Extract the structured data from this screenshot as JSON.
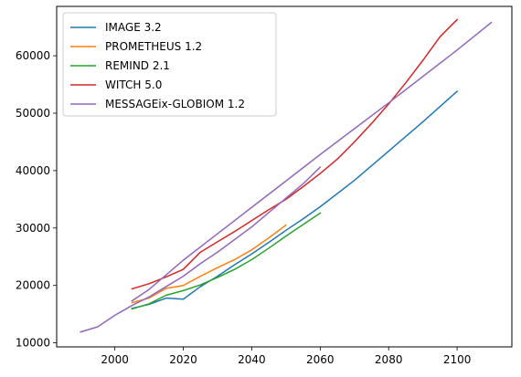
{
  "chart_data": {
    "type": "line",
    "title": "",
    "xlabel": "",
    "ylabel": "",
    "xlim": [
      1983,
      2116
    ],
    "ylim": [
      9300,
      68600
    ],
    "xticks": [
      2000,
      2020,
      2040,
      2060,
      2080,
      2100
    ],
    "yticks": [
      10000,
      20000,
      30000,
      40000,
      50000,
      60000
    ],
    "grid": false,
    "legend": "top-left",
    "series": [
      {
        "name": "IMAGE 3.2",
        "color": "#1f77b4",
        "x": [
          2005,
          2010,
          2015,
          2020,
          2025,
          2030,
          2035,
          2040,
          2045,
          2050,
          2055,
          2060,
          2070,
          2080,
          2090,
          2100
        ],
        "y": [
          16000,
          16700,
          17800,
          17600,
          19800,
          21600,
          23600,
          25500,
          27500,
          29600,
          31600,
          33700,
          38300,
          43400,
          48500,
          53800
        ]
      },
      {
        "name": "PROMETHEUS 1.2",
        "color": "#ff7f0e",
        "x": [
          2005,
          2010,
          2015,
          2020,
          2025,
          2030,
          2035,
          2040,
          2045,
          2050
        ],
        "y": [
          17000,
          17800,
          19500,
          20000,
          21600,
          23100,
          24500,
          26200,
          28300,
          30500
        ]
      },
      {
        "name": "REMIND 2.1",
        "color": "#2ca02c",
        "x": [
          2005,
          2010,
          2015,
          2020,
          2025,
          2030,
          2035,
          2040,
          2045,
          2050,
          2055,
          2060
        ],
        "y": [
          15900,
          16800,
          18300,
          19100,
          20100,
          21400,
          22800,
          24500,
          26500,
          28600,
          30600,
          32600
        ]
      },
      {
        "name": "WITCH 5.0",
        "color": "#d62728",
        "x": [
          2005,
          2010,
          2015,
          2020,
          2025,
          2030,
          2035,
          2040,
          2045,
          2050,
          2055,
          2060,
          2065,
          2070,
          2075,
          2080,
          2085,
          2090,
          2095,
          2100
        ],
        "y": [
          19400,
          20300,
          21500,
          22800,
          25800,
          27600,
          29400,
          31300,
          33200,
          35000,
          37200,
          39500,
          42000,
          45000,
          48200,
          51600,
          55300,
          59200,
          63300,
          66300
        ]
      },
      {
        "name": "MESSAGEix-GLOBIOM 1.2",
        "color": "#9467bd",
        "x": [
          1990,
          1995,
          2000,
          2005,
          2010,
          2015,
          2020,
          2025,
          2030,
          2035,
          2040,
          2045,
          2050,
          2055,
          2060
        ],
        "y": [
          11900,
          12800,
          14800,
          16500,
          18000,
          19800,
          21600,
          23800,
          25800,
          28000,
          30200,
          32700,
          35200,
          37700,
          40600
        ]
      },
      {
        "name": "",
        "color": "#9467bd",
        "x": [
          2005,
          2010,
          2020,
          2030,
          2040,
          2050,
          2060,
          2070,
          2080,
          2090,
          2100,
          2110
        ],
        "y": [
          17300,
          19300,
          24400,
          29000,
          33600,
          38200,
          42800,
          47300,
          51800,
          56400,
          61000,
          65800
        ]
      }
    ]
  }
}
